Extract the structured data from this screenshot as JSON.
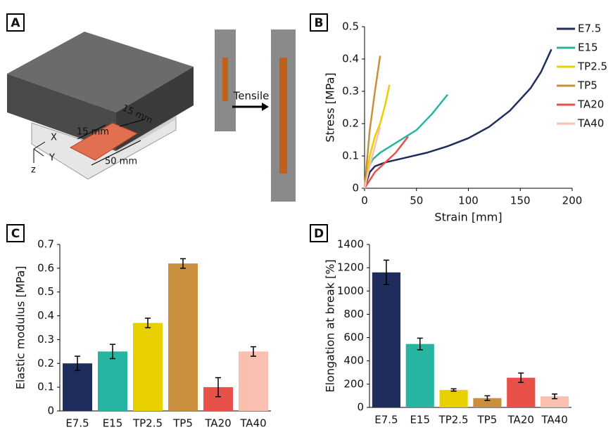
{
  "panels": [
    "A",
    "B",
    "C",
    "D"
  ],
  "diagram": {
    "dimensions": [
      "15 mm",
      "15 mm",
      "50 mm"
    ],
    "axes": [
      "X",
      "Y",
      "z"
    ],
    "arrow_label": "Tensile"
  },
  "chart_data": [
    {
      "type": "line",
      "xlabel": "Strain [mm]",
      "ylabel": "Stress [MPa]",
      "xlim": [
        0,
        200
      ],
      "xticks": [
        0,
        50,
        100,
        150,
        200
      ],
      "ylim": [
        0,
        0.5
      ],
      "yticks": [
        0,
        0.1,
        0.2,
        0.3,
        0.4,
        0.5
      ],
      "legend": "upper right",
      "series": [
        {
          "name": "E7.5",
          "color": "#1f2d5c",
          "x": [
            0,
            5,
            10,
            20,
            40,
            60,
            80,
            100,
            120,
            140,
            160,
            170,
            180
          ],
          "values": [
            0,
            0.05,
            0.068,
            0.08,
            0.095,
            0.11,
            0.13,
            0.155,
            0.19,
            0.24,
            0.31,
            0.36,
            0.43
          ]
        },
        {
          "name": "E15",
          "color": "#26b5a0",
          "x": [
            0,
            3,
            8,
            15,
            30,
            50,
            65,
            80
          ],
          "values": [
            0,
            0.06,
            0.09,
            0.11,
            0.14,
            0.18,
            0.23,
            0.29
          ]
        },
        {
          "name": "TP2.5",
          "color": "#e8d000",
          "x": [
            0,
            5,
            10,
            15,
            20,
            24
          ],
          "values": [
            0,
            0.1,
            0.16,
            0.2,
            0.26,
            0.32
          ]
        },
        {
          "name": "TP5",
          "color": "#c98f3c",
          "x": [
            0,
            5,
            10,
            15
          ],
          "values": [
            0,
            0.18,
            0.3,
            0.41
          ]
        },
        {
          "name": "TA20",
          "color": "#e8504a",
          "x": [
            0,
            10,
            20,
            30,
            42
          ],
          "values": [
            0,
            0.05,
            0.08,
            0.11,
            0.16
          ]
        },
        {
          "name": "TA40",
          "color": "#f9c0b0",
          "x": [
            0,
            5,
            10,
            15
          ],
          "values": [
            0,
            0.07,
            0.13,
            0.19
          ]
        }
      ]
    },
    {
      "type": "bar",
      "ylabel": "Elastic modulus [MPa]",
      "categories": [
        "E7.5",
        "E15",
        "TP2.5",
        "TP5",
        "TA20",
        "TA40"
      ],
      "values": [
        0.2,
        0.25,
        0.37,
        0.62,
        0.1,
        0.25
      ],
      "errors": [
        0.03,
        0.03,
        0.02,
        0.02,
        0.04,
        0.02
      ],
      "colors": [
        "#1f2d5c",
        "#26b5a0",
        "#e8d000",
        "#c98f3c",
        "#e8504a",
        "#f9c0b0"
      ],
      "ylim": [
        0,
        0.7
      ],
      "yticks": [
        0,
        0.1,
        0.2,
        0.3,
        0.4,
        0.5,
        0.6,
        0.7
      ]
    },
    {
      "type": "bar",
      "ylabel": "Elongation at break [%]",
      "categories": [
        "E7.5",
        "E15",
        "TP2.5",
        "TP5",
        "TA20",
        "TA40"
      ],
      "values": [
        1160,
        545,
        150,
        80,
        255,
        95
      ],
      "errors": [
        105,
        50,
        10,
        20,
        40,
        20
      ],
      "colors": [
        "#1f2d5c",
        "#26b5a0",
        "#e8d000",
        "#c98f3c",
        "#e8504a",
        "#f9c0b0"
      ],
      "ylim": [
        0,
        1400
      ],
      "yticks": [
        0,
        200,
        400,
        600,
        800,
        1000,
        1200,
        1400
      ]
    }
  ]
}
